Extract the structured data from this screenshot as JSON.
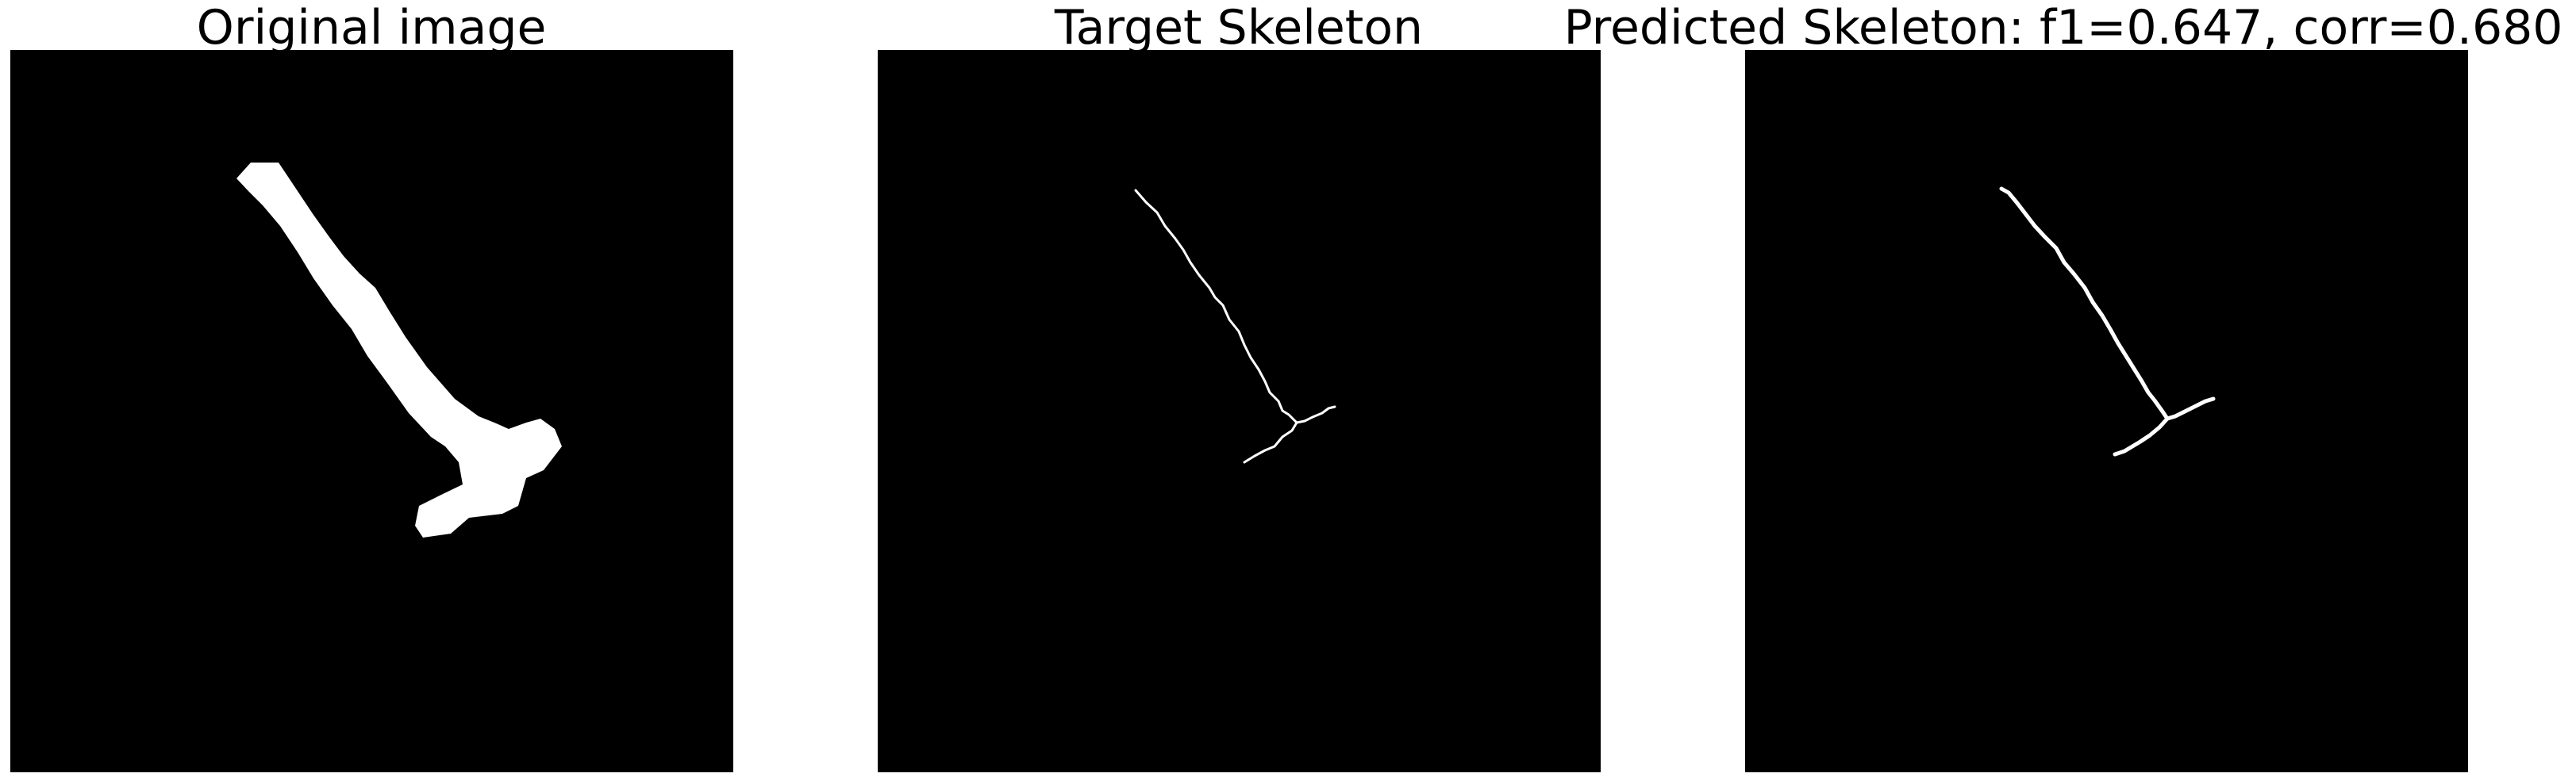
{
  "panels": [
    {
      "title": "Original image"
    },
    {
      "title": "Target Skeleton"
    },
    {
      "title": "Predicted Skeleton: f1=0.647, corr=0.680"
    }
  ],
  "colors": {
    "background": "#000000",
    "foreground": "#ffffff",
    "figure": "#ffffff"
  }
}
